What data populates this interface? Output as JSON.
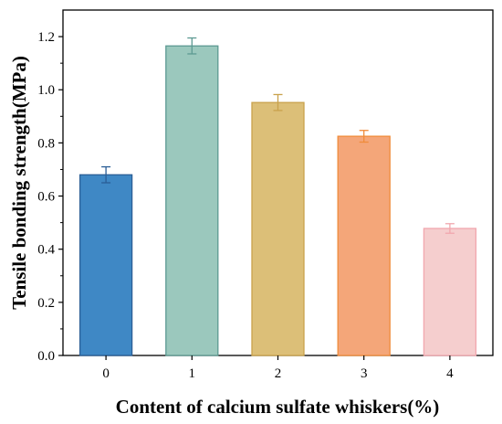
{
  "chart_data": {
    "type": "bar",
    "title": "",
    "xlabel": "Content of calcium sulfate whiskers(%)",
    "ylabel": "Tensile bonding strength(MPa)",
    "categories": [
      "0",
      "1",
      "2",
      "3",
      "4"
    ],
    "values": [
      0.68,
      1.165,
      0.952,
      0.825,
      0.478
    ],
    "errors": [
      0.03,
      0.03,
      0.03,
      0.022,
      0.018
    ],
    "ylim": [
      0,
      1.3
    ],
    "yticks": [
      "0.0",
      "0.2",
      "0.4",
      "0.6",
      "0.8",
      "1.0",
      "1.2"
    ],
    "grid": false,
    "legend": "none",
    "colors": {
      "fill": [
        "#3f88c5",
        "#9bc8bd",
        "#dcbf78",
        "#f4a679",
        "#f5cece"
      ],
      "stroke": [
        "#2a5e96",
        "#5d9a92",
        "#c9a24c",
        "#f08c3b",
        "#f1a7ae"
      ]
    }
  }
}
